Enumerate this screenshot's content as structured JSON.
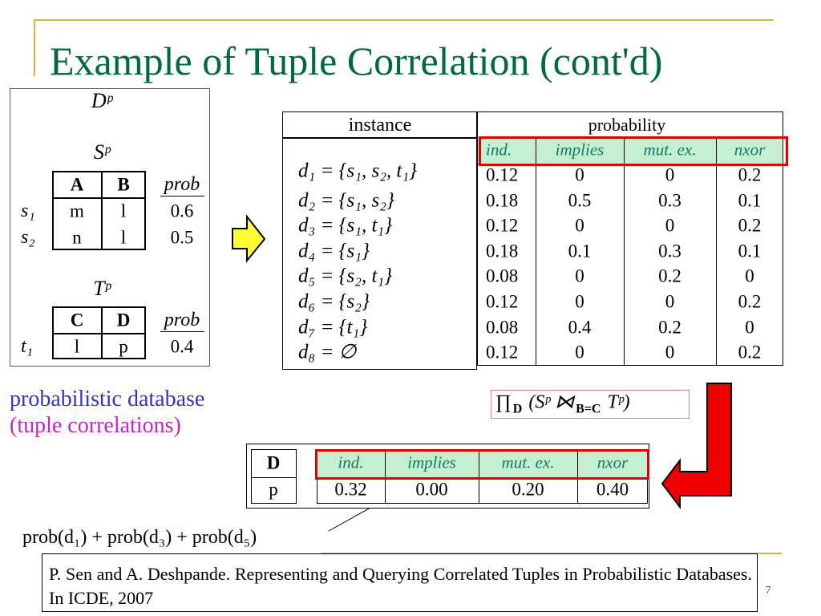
{
  "title": "Example of Tuple Correlation (cont'd)",
  "left_panel": {
    "db_label": "Dᵖ",
    "s_label": "Sᵖ",
    "s_table": {
      "header": [
        "A",
        "B",
        "prob"
      ],
      "rows": [
        [
          "s₁",
          "m",
          "l",
          "0.6"
        ],
        [
          "s₂",
          "n",
          "l",
          "0.5"
        ]
      ]
    },
    "t_label": "Tᵖ",
    "t_table": {
      "header": [
        "C",
        "D",
        "prob"
      ],
      "rows": [
        [
          "t₁",
          "l",
          "p",
          "0.4"
        ]
      ]
    }
  },
  "instances": {
    "header": "instance",
    "rows": [
      "d₁ = {s₁, s₂, t₁}",
      "d₂ = {s₁, s₂}",
      "d₃ = {s₁, t₁}",
      "d₄ = {s₁}",
      "d₅ = {s₂, t₁}",
      "d₆ = {s₂}",
      "d₇ = {t₁}",
      "d₈ = ∅"
    ]
  },
  "probability": {
    "header": "probability",
    "columns": [
      "ind.",
      "implies",
      "mut. ex.",
      "nxor"
    ],
    "rows": [
      [
        "0.12",
        "0",
        "0",
        "0.2"
      ],
      [
        "0.18",
        "0.5",
        "0.3",
        "0.1"
      ],
      [
        "0.12",
        "0",
        "0",
        "0.2"
      ],
      [
        "0.18",
        "0.1",
        "0.3",
        "0.1"
      ],
      [
        "0.08",
        "0",
        "0.2",
        "0"
      ],
      [
        "0.12",
        "0",
        "0",
        "0.2"
      ],
      [
        "0.08",
        "0.4",
        "0.2",
        "0"
      ],
      [
        "0.12",
        "0",
        "0",
        "0.2"
      ]
    ]
  },
  "caption": [
    "probabilistic database",
    "(tuple correlations)"
  ],
  "formula": {
    "op": "∏",
    "op_sub": "D",
    "left": "(Sᵖ ⋈",
    "join_sub": "B=C",
    "right": "Tᵖ)"
  },
  "result": {
    "header": [
      "D",
      "ind.",
      "implies",
      "mut. ex.",
      "nxor"
    ],
    "row": [
      "p",
      "0.32",
      "0.00",
      "0.20",
      "0.40"
    ]
  },
  "sum_expression": "prob(d₁) + prob(d₃) + prob(d₅)",
  "citation": "P. Sen and A. Deshpande. Representing and Querying Correlated Tuples in Probabilistic Databases. In ICDE, 2007",
  "page_number": "7"
}
